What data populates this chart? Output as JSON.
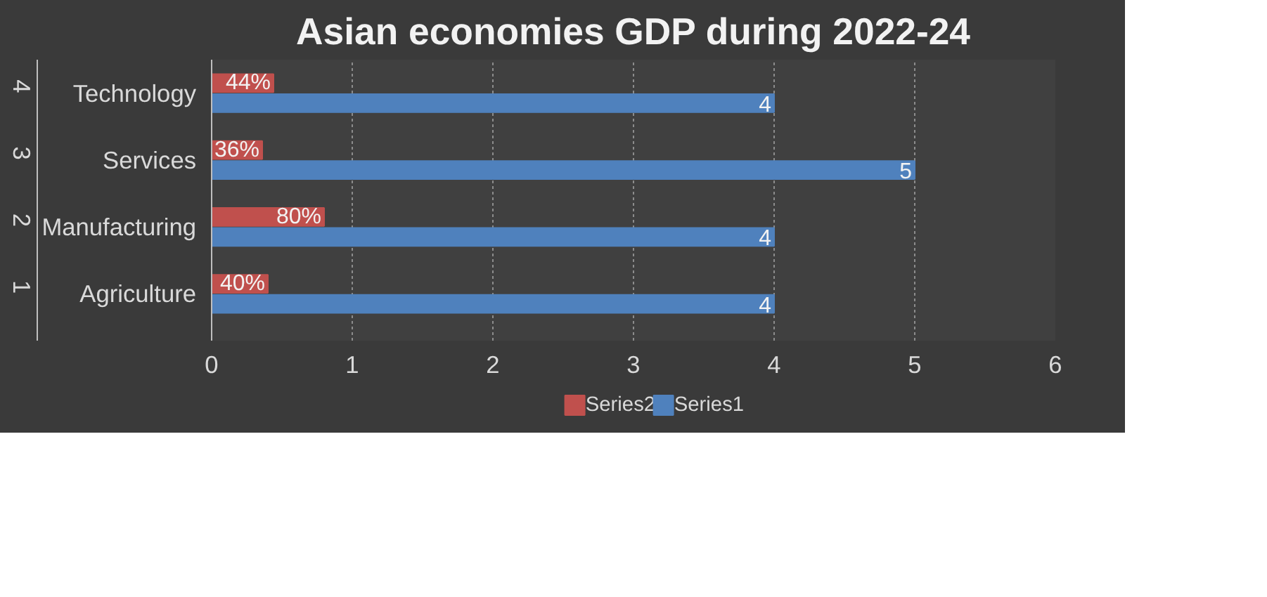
{
  "chart_data": {
    "type": "bar",
    "orientation": "horizontal",
    "title": "Asian economies GDP during 2022-24",
    "categories": [
      "Technology",
      "Services",
      "Manufacturing",
      "Agriculture"
    ],
    "series": [
      {
        "name": "Series2",
        "color": "#c0504d",
        "values": [
          0.44,
          0.36,
          0.8,
          0.4
        ],
        "value_labels": [
          "44%",
          "36%",
          "80%",
          "40%"
        ]
      },
      {
        "name": "Series1",
        "color": "#4f81bd",
        "values": [
          4,
          5,
          4,
          4
        ],
        "value_labels": [
          "4",
          "5",
          "4",
          "4"
        ]
      }
    ],
    "annotations": [
      "4",
      "3",
      "2",
      "1"
    ],
    "xlim": [
      0,
      6
    ],
    "xticks": [
      0,
      1,
      2,
      3,
      4,
      5,
      6
    ],
    "grid": "x",
    "legend": "bottom"
  }
}
